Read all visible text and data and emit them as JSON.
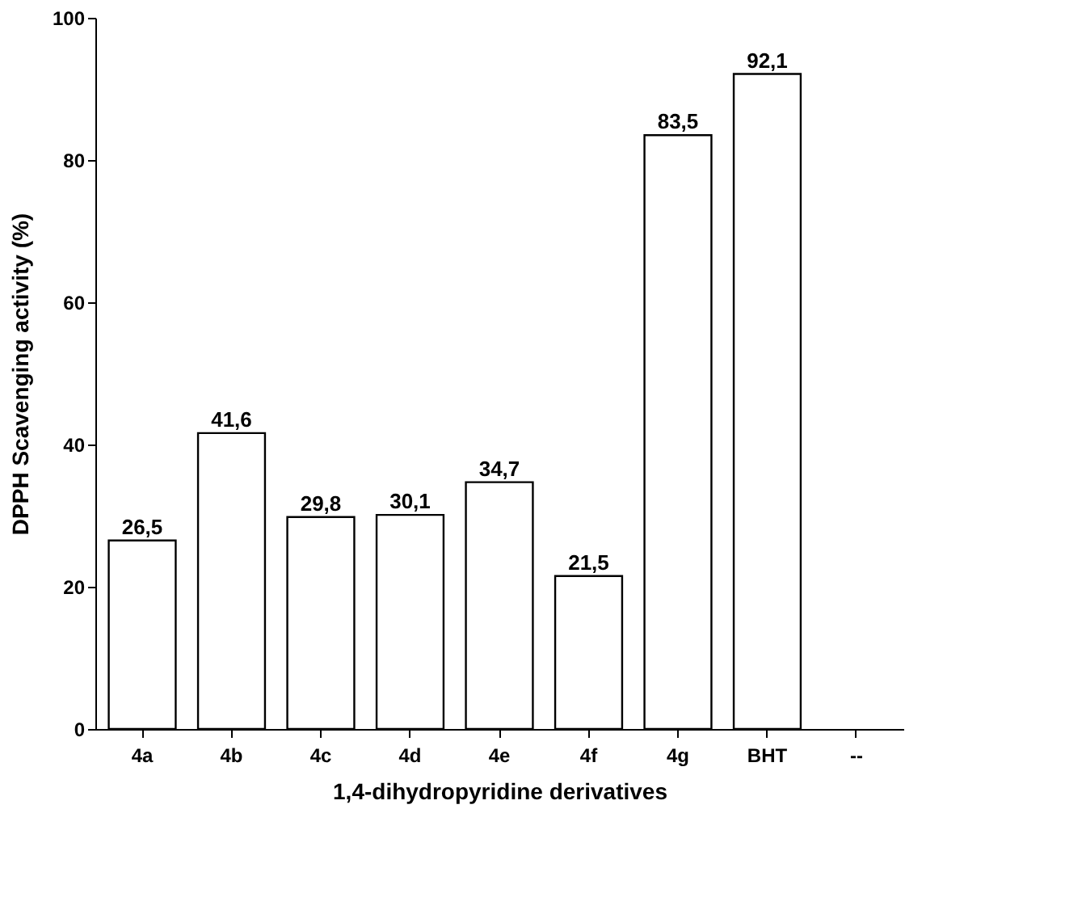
{
  "chart_data": {
    "type": "bar",
    "xlabel": "1,4-dihydropyridine derivatives",
    "ylabel": "DPPH Scavenging activity (%)",
    "categories": [
      "4a",
      "4b",
      "4c",
      "4d",
      "4e",
      "4f",
      "4g",
      "BHT",
      "--"
    ],
    "values": [
      26.5,
      41.6,
      29.8,
      30.1,
      34.7,
      21.5,
      83.5,
      92.1,
      null
    ],
    "value_labels": [
      "26,5",
      "41,6",
      "29,8",
      "30,1",
      "34,7",
      "21,5",
      "83,5",
      "92,1",
      null
    ],
    "color": "#ffffff",
    "ylim": [
      0,
      100
    ],
    "yticks": [
      0,
      20,
      40,
      60,
      80,
      100
    ],
    "grid": false
  }
}
